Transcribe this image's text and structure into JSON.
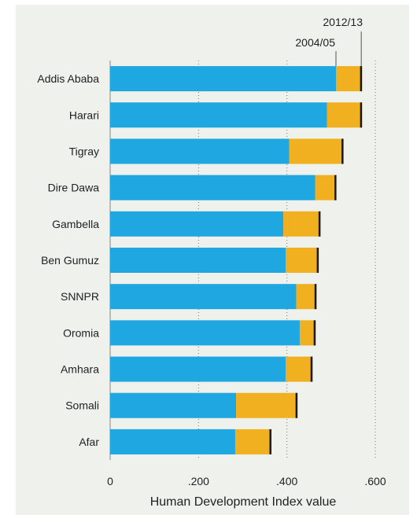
{
  "chart_data": {
    "type": "bar",
    "orientation": "horizontal",
    "stacked_change": true,
    "xlabel": "Human Development Index value",
    "xlim": [
      0,
      0.6
    ],
    "xticks": [
      0,
      0.2,
      0.4,
      0.6
    ],
    "xtick_labels": [
      "0",
      ".200",
      ".400",
      ".600"
    ],
    "grid": true,
    "legend_placement": "top-right",
    "categories": [
      "Addis Ababa",
      "Harari",
      "Tigray",
      "Dire Dawa",
      "Gambella",
      "Ben Gumuz",
      "SNNPR",
      "Oromia",
      "Amhara",
      "Somali",
      "Afar"
    ],
    "series": [
      {
        "name": "2004/05",
        "values": [
          0.511,
          0.491,
          0.405,
          0.464,
          0.392,
          0.397,
          0.421,
          0.429,
          0.397,
          0.285,
          0.283
        ]
      },
      {
        "name": "2012/13",
        "values": [
          0.57,
          0.57,
          0.528,
          0.512,
          0.476,
          0.472,
          0.467,
          0.465,
          0.458,
          0.424,
          0.365
        ]
      }
    ],
    "colors": {
      "base": "#1ea7e1",
      "increase": "#f0b020",
      "cap": "#1a1a1a"
    }
  }
}
